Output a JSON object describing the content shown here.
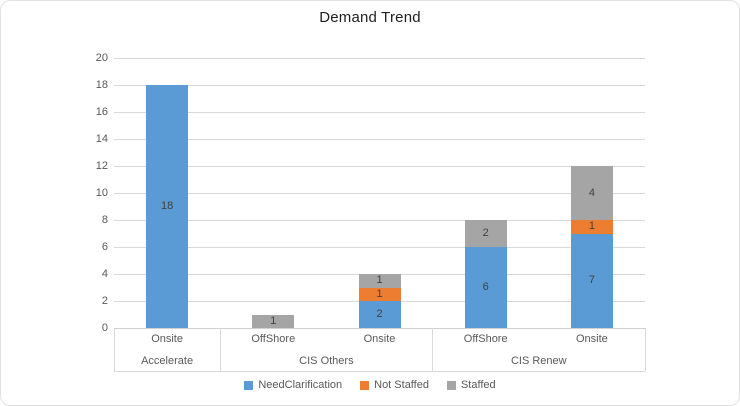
{
  "chart": {
    "title": "Demand Trend"
  },
  "chart_data": {
    "type": "bar",
    "stacked": true,
    "orientation": "vertical",
    "title": "Demand Trend",
    "groups": [
      {
        "label": "Accelerate",
        "categories": [
          "Onsite"
        ]
      },
      {
        "label": "CIS Others",
        "categories": [
          "OffShore",
          "Onsite"
        ]
      },
      {
        "label": "CIS Renew",
        "categories": [
          "OffShore",
          "Onsite"
        ]
      }
    ],
    "categories_flat": [
      "Onsite",
      "OffShore",
      "Onsite",
      "OffShore",
      "Onsite"
    ],
    "series": [
      {
        "name": "NeedClarification",
        "color": "#5B9BD5",
        "values": [
          18,
          0,
          2,
          6,
          7
        ]
      },
      {
        "name": "Not Staffed",
        "color": "#ED7D31",
        "values": [
          0,
          0,
          1,
          0,
          1
        ]
      },
      {
        "name": "Staffed",
        "color": "#A5A5A5",
        "values": [
          0,
          1,
          1,
          2,
          4
        ]
      }
    ],
    "totals": [
      18,
      1,
      4,
      8,
      12
    ],
    "ylim": [
      0,
      20
    ],
    "ytick_step": 2,
    "yticks": [
      0,
      2,
      4,
      6,
      8,
      10,
      12,
      14,
      16,
      18,
      20
    ],
    "grid": true,
    "data_labels": true,
    "legend_position": "bottom"
  },
  "colors": {
    "grid": "#D9D9D9",
    "axis_line": "#D0D0D0",
    "axis_text": "#595959",
    "data_label_text": "#404040",
    "title_text": "#1F1F1F",
    "background": "#FFFFFF"
  }
}
